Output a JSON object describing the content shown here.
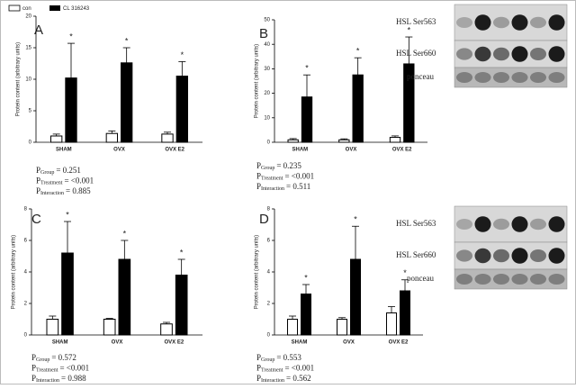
{
  "chart_data": [
    {
      "type": "bar",
      "panel": "A",
      "y_label": "Protein content (arbitrary units)",
      "categories": [
        "SHAM",
        "OVX",
        "OVX E2"
      ],
      "series": [
        {
          "name": "con",
          "color": "#ffffff",
          "values": [
            1.0,
            1.4,
            1.3
          ],
          "errors": [
            0.3,
            0.4,
            0.3
          ]
        },
        {
          "name": "CL 316243",
          "color": "#000000",
          "values": [
            10.2,
            12.6,
            10.5
          ],
          "errors": [
            5.5,
            2.4,
            2.3
          ],
          "significance": [
            "*",
            "*",
            "*"
          ]
        }
      ],
      "ylim": [
        0,
        20
      ],
      "yticks": [
        0,
        5,
        10,
        15,
        20
      ],
      "stats": [
        {
          "symbol": "P",
          "subscript": "Group",
          "text": "= 0.251"
        },
        {
          "symbol": "P",
          "subscript": "Treatment",
          "text": "= <0.001"
        },
        {
          "symbol": "P",
          "subscript": "Interaction",
          "text": "= 0.885"
        }
      ]
    },
    {
      "type": "bar",
      "panel": "B",
      "y_label": "Protein content (arbitrary units)",
      "categories": [
        "SHAM",
        "OVX",
        "OVX E2"
      ],
      "series": [
        {
          "color": "#ffffff",
          "values": [
            1.0,
            1.0,
            2.0
          ],
          "errors": [
            0.5,
            0.4,
            0.6
          ]
        },
        {
          "color": "#000000",
          "values": [
            18.5,
            27.5,
            32.0
          ],
          "errors": [
            9.0,
            7.0,
            11.0
          ],
          "significance": [
            "*",
            "*",
            "*"
          ]
        }
      ],
      "ylim": [
        0,
        50
      ],
      "yticks": [
        0,
        10,
        20,
        30,
        40,
        50
      ],
      "stats": [
        {
          "symbol": "P",
          "subscript": "Group",
          "text": "= 0.235"
        },
        {
          "symbol": "P",
          "subscript": "Treatment",
          "text": "= <0.001"
        },
        {
          "symbol": "P",
          "subscript": "Interaction",
          "text": "= 0.511"
        }
      ]
    },
    {
      "type": "bar",
      "panel": "C",
      "y_label": "Protein content (arbitrary units)",
      "categories": [
        "SHAM",
        "OVX",
        "OVX E2"
      ],
      "series": [
        {
          "color": "#ffffff",
          "values": [
            1.0,
            1.0,
            0.7
          ],
          "errors": [
            0.2,
            0.05,
            0.1
          ]
        },
        {
          "color": "#000000",
          "values": [
            5.2,
            4.8,
            3.8
          ],
          "errors": [
            2.0,
            1.2,
            1.0
          ],
          "significance": [
            "*",
            "*",
            "*"
          ]
        }
      ],
      "ylim": [
        0,
        8
      ],
      "yticks": [
        0,
        2,
        4,
        6,
        8
      ],
      "stats": [
        {
          "symbol": "P",
          "subscript": "Group",
          "text": "= 0.572"
        },
        {
          "symbol": "P",
          "subscript": "Treatment",
          "text": "= <0.001"
        },
        {
          "symbol": "P",
          "subscript": "Interaction",
          "text": "= 0.988"
        }
      ]
    },
    {
      "type": "bar",
      "panel": "D",
      "y_label": "Protein content (arbitrary units)",
      "categories": [
        "SHAM",
        "OVX",
        "OVX E2"
      ],
      "series": [
        {
          "color": "#ffffff",
          "values": [
            1.0,
            1.0,
            1.4
          ],
          "errors": [
            0.2,
            0.1,
            0.4
          ]
        },
        {
          "color": "#000000",
          "values": [
            2.6,
            4.8,
            2.8
          ],
          "errors": [
            0.6,
            2.1,
            0.7
          ],
          "significance": [
            "*",
            "*",
            "*"
          ]
        }
      ],
      "ylim": [
        0,
        8
      ],
      "yticks": [
        0,
        2,
        4,
        6,
        8
      ],
      "stats": [
        {
          "symbol": "P",
          "subscript": "Group",
          "text": "= 0.553"
        },
        {
          "symbol": "P",
          "subscript": "Treatment",
          "text": "= <0.001"
        },
        {
          "symbol": "P",
          "subscript": "Interaction",
          "text": "= 0.562"
        }
      ]
    }
  ],
  "blots": [
    {
      "labels": [
        "HSL Ser563",
        "HSL Ser660",
        "ponceau"
      ]
    },
    {
      "labels": [
        "HSL Ser563",
        "HSL Ser660",
        "ponceau"
      ]
    }
  ]
}
